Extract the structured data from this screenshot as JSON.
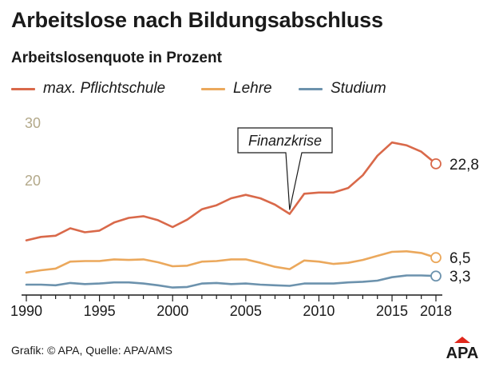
{
  "title": "Arbeitslose nach Bildungsabschluss",
  "subtitle": "Arbeitslosenquote in Prozent",
  "footer": "Grafik: © APA, Quelle: APA/AMS",
  "logo_text": "APA",
  "colors": {
    "pflichtschule": "#d9694a",
    "lehre": "#eba85c",
    "studium": "#6c92ad",
    "ytick": "#b3a98a",
    "axis": "#1a1a1a",
    "logo_red": "#e0281c"
  },
  "chart_data": {
    "type": "line",
    "x": [
      1990,
      1991,
      1992,
      1993,
      1994,
      1995,
      1996,
      1997,
      1998,
      1999,
      2000,
      2001,
      2002,
      2003,
      2004,
      2005,
      2006,
      2007,
      2008,
      2009,
      2010,
      2011,
      2012,
      2013,
      2014,
      2015,
      2016,
      2017,
      2018
    ],
    "series": [
      {
        "name": "max. Pflichtschule",
        "color": "#d9694a",
        "values": [
          9.5,
          10.1,
          10.3,
          11.6,
          10.9,
          11.2,
          12.6,
          13.4,
          13.7,
          13.0,
          11.8,
          13.1,
          14.9,
          15.6,
          16.8,
          17.4,
          16.8,
          15.7,
          14.1,
          17.6,
          17.8,
          17.8,
          18.6,
          20.8,
          24.2,
          26.5,
          26.0,
          24.9,
          22.8
        ]
      },
      {
        "name": "Lehre",
        "color": "#eba85c",
        "values": [
          3.9,
          4.3,
          4.6,
          5.8,
          5.9,
          5.9,
          6.2,
          6.1,
          6.2,
          5.7,
          5.0,
          5.1,
          5.8,
          5.9,
          6.2,
          6.2,
          5.6,
          4.9,
          4.5,
          6.0,
          5.8,
          5.4,
          5.6,
          6.1,
          6.8,
          7.5,
          7.6,
          7.3,
          6.5
        ]
      },
      {
        "name": "Studium",
        "color": "#6c92ad",
        "values": [
          1.8,
          1.8,
          1.7,
          2.1,
          1.9,
          2.0,
          2.2,
          2.2,
          2.0,
          1.7,
          1.3,
          1.4,
          2.0,
          2.1,
          1.9,
          2.0,
          1.8,
          1.7,
          1.6,
          2.0,
          2.0,
          2.0,
          2.2,
          2.3,
          2.5,
          3.1,
          3.4,
          3.4,
          3.3
        ]
      }
    ],
    "end_labels": [
      "22,8",
      "6,5",
      "3,3"
    ],
    "annotation": {
      "text": "Finanzkrise",
      "x": 2008,
      "y": 14.1
    },
    "ylim": [
      0,
      30
    ],
    "yticks": [
      20,
      30
    ],
    "xticks": [
      1990,
      1995,
      2000,
      2005,
      2010,
      2015,
      2018
    ],
    "xlim": [
      1990,
      2018
    ],
    "grid": false,
    "legend_position": "top"
  }
}
